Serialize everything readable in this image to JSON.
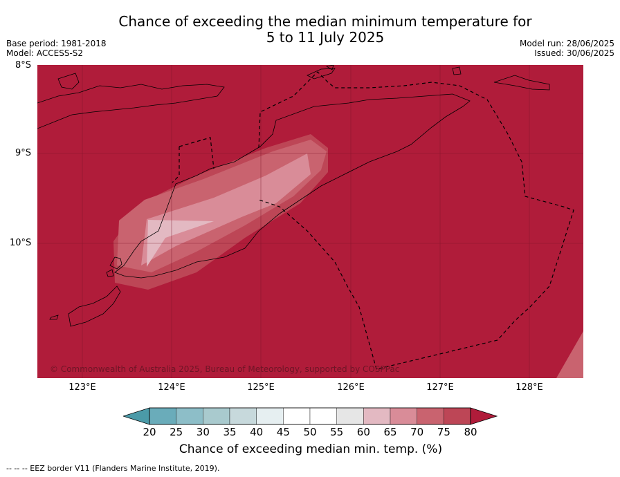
{
  "title_line1": "Chance of exceeding the median minimum temperature for",
  "title_line2": "5 to 11 July 2025",
  "base_period": "Base period: 1981-2018",
  "model": "Model: ACCESS-S2",
  "model_run": "Model run: 28/06/2025",
  "issued": "Issued: 30/06/2025",
  "copyright": "© Commonwealth of Australia 2025, Bureau of Meteorology, supported by COSPPac",
  "lat_labels": [
    "8°S",
    "9°S",
    "10°S"
  ],
  "lon_labels": [
    "123°E",
    "124°E",
    "125°E",
    "126°E",
    "127°E",
    "128°E"
  ],
  "colorbar": {
    "ticks": [
      "20",
      "25",
      "30",
      "35",
      "40",
      "45",
      "50",
      "55",
      "60",
      "65",
      "70",
      "75",
      "80"
    ],
    "colors": [
      "#4b9aa8",
      "#6aacba",
      "#8dbec8",
      "#a9cace",
      "#c7d9dc",
      "#e6eff1",
      "#ffffff",
      "#ffffff",
      "#e6e6e6",
      "#e3b9c2",
      "#d98c98",
      "#c9636f",
      "#bd4656",
      "#b01c3a"
    ],
    "label": "Chance of exceeding median min. temp. (%)"
  },
  "footnote": "--  --  -- EEZ border V11 (Flanders Marine Institute, 2019)."
}
